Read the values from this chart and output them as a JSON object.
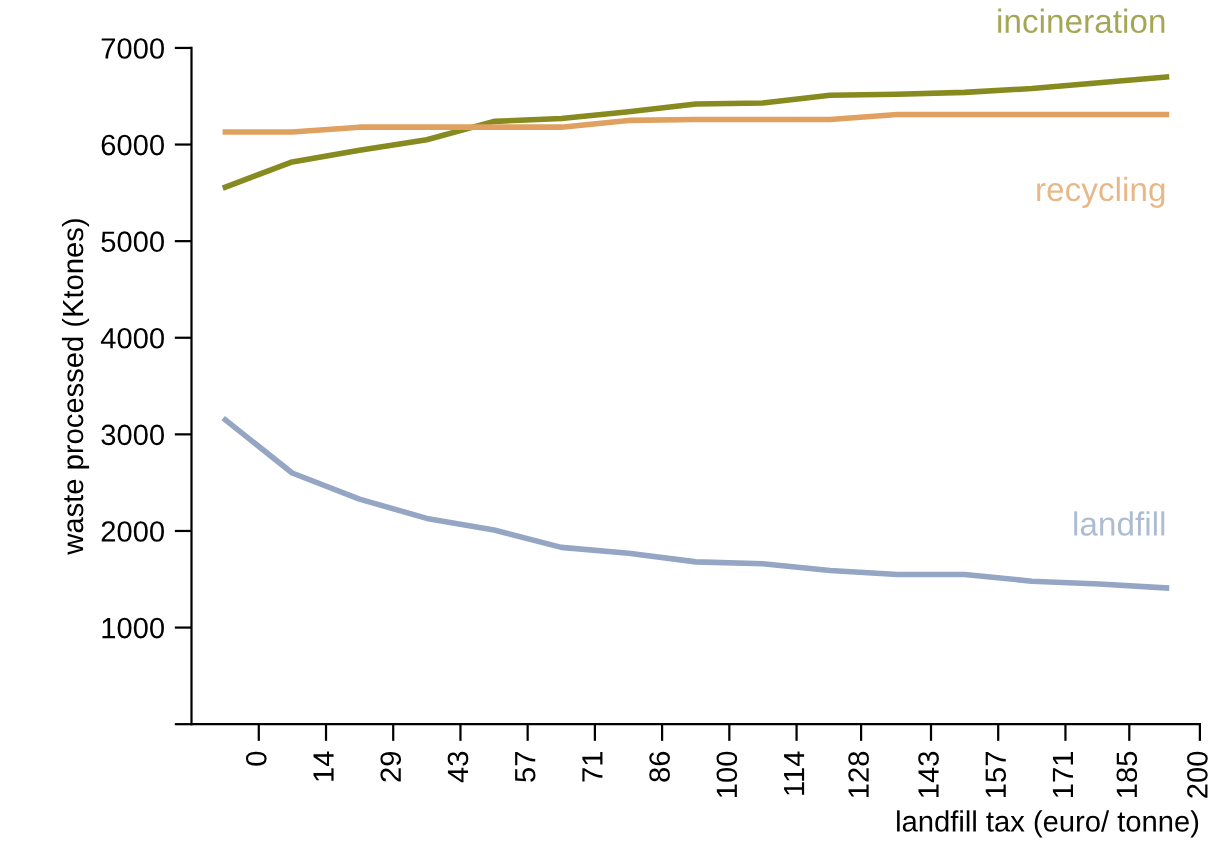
{
  "chart_data": {
    "type": "line",
    "xlabel": "landfill tax (euro/ tonne)",
    "ylabel": "waste processed (Ktones)",
    "x": [
      -7.1,
      7.1,
      21.4,
      35.7,
      50,
      64.3,
      78.6,
      92.9,
      107.1,
      121.4,
      135.7,
      150,
      164.3,
      178.6,
      192.9
    ],
    "series": [
      {
        "name": "incineration",
        "color": "#878a1f",
        "values": [
          5560,
          5820,
          5940,
          6050,
          6240,
          6270,
          6340,
          6420,
          6430,
          6510,
          6520,
          6540,
          6580,
          6640,
          6700
        ]
      },
      {
        "name": "recycling",
        "color": "#e0a060",
        "values": [
          6130,
          6130,
          6180,
          6180,
          6180,
          6180,
          6250,
          6260,
          6260,
          6260,
          6310,
          6310,
          6310,
          6310,
          6310
        ]
      },
      {
        "name": "landfill",
        "color": "#94a6c4",
        "values": [
          3150,
          2600,
          2330,
          2130,
          2010,
          1830,
          1770,
          1680,
          1660,
          1590,
          1550,
          1550,
          1480,
          1450,
          1410
        ]
      }
    ],
    "xlim": [
      -14.3,
      200
    ],
    "xticks": [
      0,
      {
        "value": 14.29,
        "label": "14"
      },
      {
        "value": 28.57,
        "label": "29"
      },
      {
        "value": 42.86,
        "label": "43"
      },
      {
        "value": 57.14,
        "label": "57"
      },
      {
        "value": 71.43,
        "label": "71"
      },
      {
        "value": 85.71,
        "label": "86"
      },
      100,
      {
        "value": 114.29,
        "label": "114"
      },
      128,
      {
        "value": 142.86,
        "label": "143"
      },
      {
        "value": 157.14,
        "label": "157"
      },
      {
        "value": 171.43,
        "label": "171"
      },
      185,
      200
    ],
    "ylim": [
      0,
      7000
    ],
    "yticks": [
      {
        "value": 0,
        "label": null
      },
      1000,
      2000,
      3000,
      4000,
      5000,
      6000,
      7000
    ],
    "grid": false,
    "legend": false,
    "marker": "none",
    "line_style": "solid"
  }
}
